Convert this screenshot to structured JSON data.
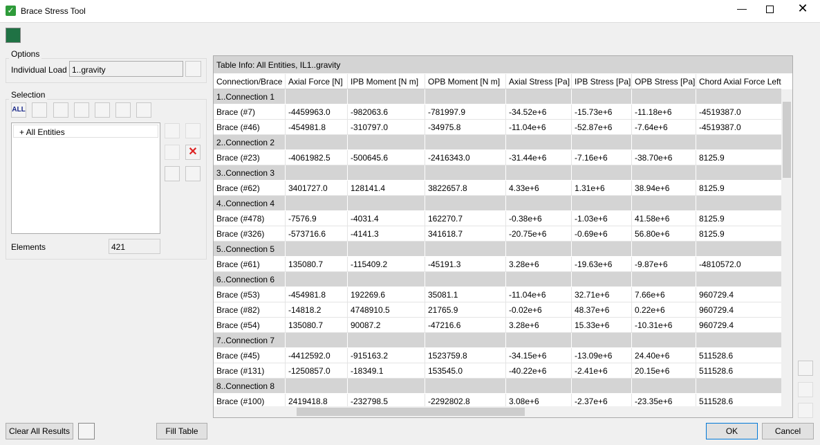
{
  "window": {
    "title": "Brace Stress Tool"
  },
  "options": {
    "legend": "Options",
    "load_label": "Individual Load",
    "load_value": "1..gravity"
  },
  "selection": {
    "legend": "Selection",
    "all_icon": "ALL",
    "tree_item": "+ All Entities",
    "elements_label": "Elements",
    "elements_value": "421"
  },
  "table": {
    "info": "Table Info: All Entities, IL1..gravity",
    "columns": [
      "Connection/Brace",
      "Axial Force  [N]",
      "IPB Moment  [N m]",
      "OPB Moment  [N m]",
      "Axial Stress  [Pa]",
      "IPB Stress  [Pa]",
      "OPB Stress  [Pa]",
      "Chord Axial Force Left"
    ],
    "rows": [
      [
        "1..Connection 1"
      ],
      [
        "Brace (#7)",
        "-4459963.0",
        "-982063.6",
        "-781997.9",
        "-34.52e+6",
        "-15.73e+6",
        "-11.18e+6",
        "-4519387.0"
      ],
      [
        "Brace (#46)",
        "-454981.8",
        "-310797.0",
        "-34975.8",
        "-11.04e+6",
        "-52.87e+6",
        "-7.64e+6",
        "-4519387.0"
      ],
      [
        "2..Connection 2"
      ],
      [
        "Brace (#23)",
        "-4061982.5",
        "-500645.6",
        "-2416343.0",
        "-31.44e+6",
        "-7.16e+6",
        "-38.70e+6",
        "8125.9"
      ],
      [
        "3..Connection 3"
      ],
      [
        "Brace (#62)",
        "3401727.0",
        "128141.4",
        "3822657.8",
        "4.33e+6",
        "1.31e+6",
        "38.94e+6",
        "8125.9"
      ],
      [
        "4..Connection 4"
      ],
      [
        "Brace (#478)",
        "-7576.9",
        "-4031.4",
        "162270.7",
        "-0.38e+6",
        "-1.03e+6",
        "41.58e+6",
        "8125.9"
      ],
      [
        "Brace (#326)",
        "-573716.6",
        "-4141.3",
        "341618.7",
        "-20.75e+6",
        "-0.69e+6",
        "56.80e+6",
        "8125.9"
      ],
      [
        "5..Connection 5"
      ],
      [
        "Brace (#61)",
        "135080.7",
        "-115409.2",
        "-45191.3",
        "3.28e+6",
        "-19.63e+6",
        "-9.87e+6",
        "-4810572.0"
      ],
      [
        "6..Connection 6"
      ],
      [
        "Brace (#53)",
        "-454981.8",
        "192269.6",
        "35081.1",
        "-11.04e+6",
        "32.71e+6",
        "7.66e+6",
        "960729.4"
      ],
      [
        "Brace (#82)",
        "-14818.2",
        "4748910.5",
        "21765.9",
        "-0.02e+6",
        "48.37e+6",
        "0.22e+6",
        "960729.4"
      ],
      [
        "Brace (#54)",
        "135080.7",
        "90087.2",
        "-47216.6",
        "3.28e+6",
        "15.33e+6",
        "-10.31e+6",
        "960729.4"
      ],
      [
        "7..Connection 7"
      ],
      [
        "Brace (#45)",
        "-4412592.0",
        "-915163.2",
        "1523759.8",
        "-34.15e+6",
        "-13.09e+6",
        "24.40e+6",
        "511528.6"
      ],
      [
        "Brace (#131)",
        "-1250857.0",
        "-18349.1",
        "153545.0",
        "-40.22e+6",
        "-2.41e+6",
        "20.15e+6",
        "511528.6"
      ],
      [
        "8..Connection 8"
      ],
      [
        "Brace (#100)",
        "2419418.8",
        "-232798.5",
        "-2292802.8",
        "3.08e+6",
        "-2.37e+6",
        "-23.35e+6",
        "511528.6"
      ]
    ]
  },
  "buttons": {
    "clear": "Clear All Results",
    "fill": "Fill Table",
    "ok": "OK",
    "cancel": "Cancel"
  }
}
